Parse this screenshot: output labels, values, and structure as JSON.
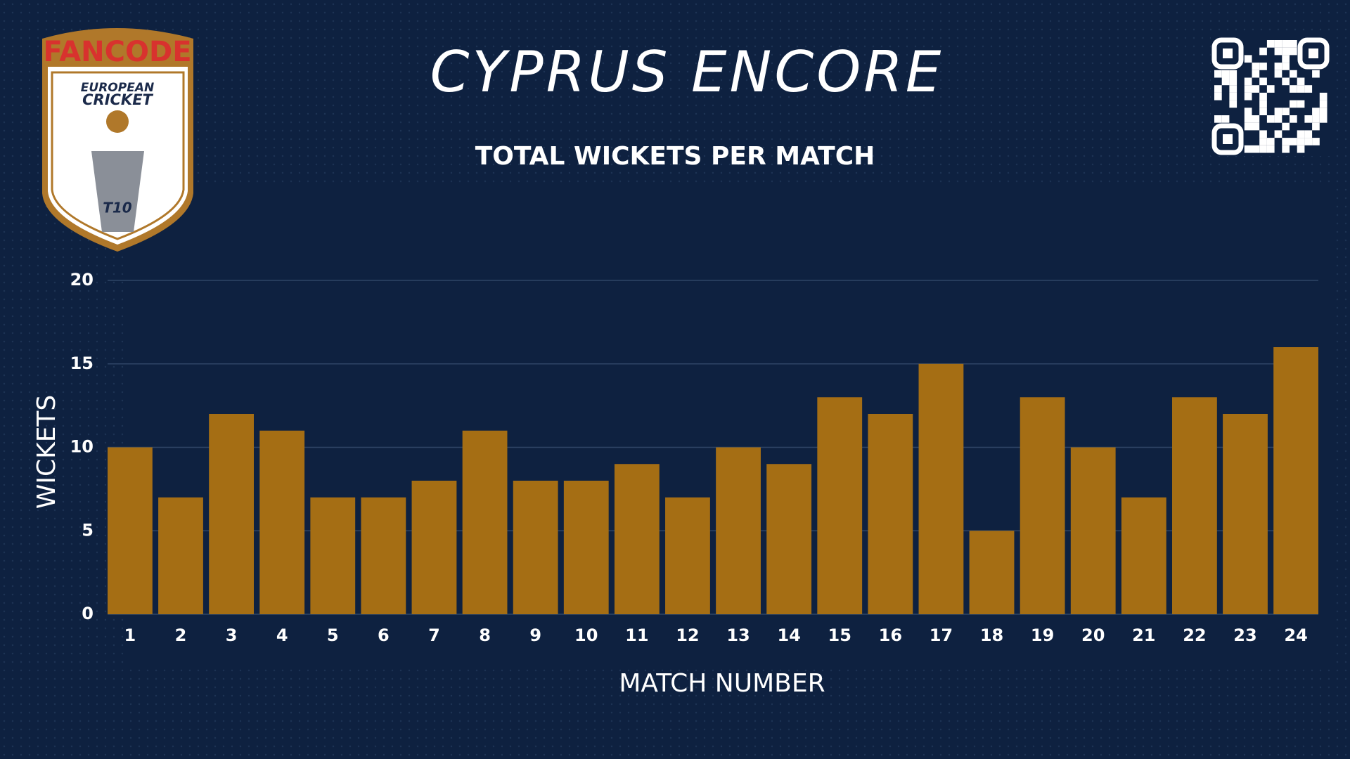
{
  "logo": {
    "brand": "FANCODE",
    "line1": "EUROPEAN",
    "line2": "CRICKET",
    "badge": "T10"
  },
  "chart_data": {
    "type": "bar",
    "title": "CYPRUS ENCORE",
    "subtitle": "TOTAL WICKETS PER MATCH",
    "x_label": "MATCH NUMBER",
    "y_label": "WICKETS",
    "categories": [
      "1",
      "2",
      "3",
      "4",
      "5",
      "6",
      "7",
      "8",
      "9",
      "10",
      "11",
      "12",
      "13",
      "14",
      "15",
      "16",
      "17",
      "18",
      "19",
      "20",
      "21",
      "22",
      "23",
      "24"
    ],
    "values": [
      10,
      7,
      12,
      11,
      7,
      7,
      8,
      11,
      8,
      8,
      9,
      7,
      10,
      9,
      13,
      12,
      15,
      5,
      13,
      10,
      7,
      13,
      12,
      16
    ],
    "color": "#a56e14",
    "ylim": [
      0,
      20
    ],
    "yticks": [
      0,
      5,
      10,
      15,
      20
    ],
    "grid": true
  }
}
